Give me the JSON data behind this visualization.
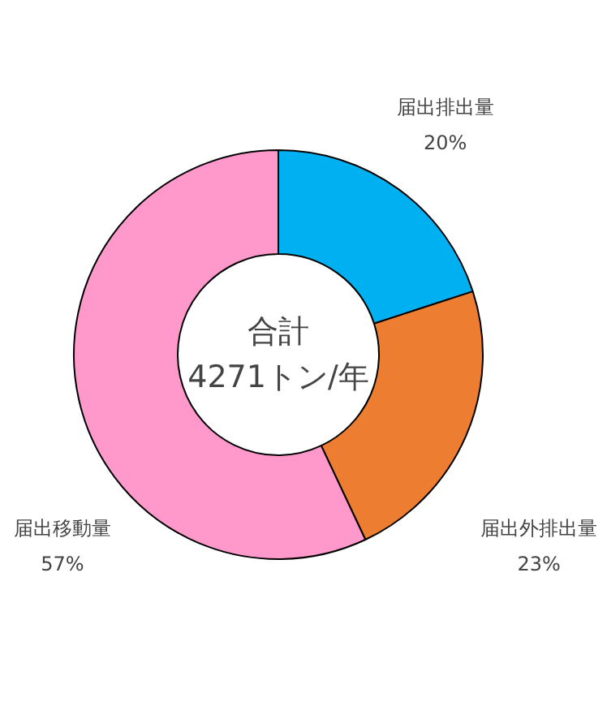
{
  "chart_data": {
    "type": "donut",
    "categories": [
      "届出排出量",
      "届出外排出量",
      "届出移動量"
    ],
    "values": [
      20,
      23,
      57
    ],
    "colors": [
      "#00b0f0",
      "#ed7d31",
      "#ff99cc"
    ],
    "value_labels": [
      "20%",
      "23%",
      "57%"
    ],
    "annotations": [
      "合計",
      "4271トン/年"
    ]
  }
}
